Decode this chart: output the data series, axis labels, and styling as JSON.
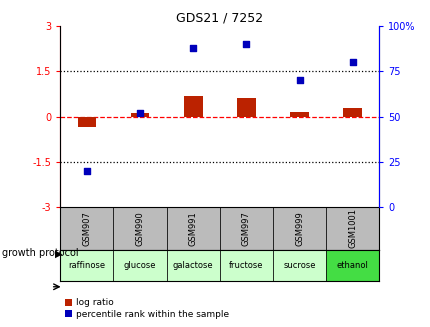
{
  "title": "GDS21 / 7252",
  "samples": [
    "GSM907",
    "GSM990",
    "GSM991",
    "GSM997",
    "GSM999",
    "GSM1001"
  ],
  "protocols": [
    "raffinose",
    "glucose",
    "galactose",
    "fructose",
    "sucrose",
    "ethanol"
  ],
  "log_ratio": [
    -0.35,
    0.12,
    0.7,
    0.62,
    0.14,
    0.28
  ],
  "percentile_rank": [
    20,
    52,
    88,
    90,
    70,
    80
  ],
  "left_ylim": [
    -3,
    3
  ],
  "right_ylim": [
    0,
    100
  ],
  "left_yticks": [
    -3,
    -1.5,
    0,
    1.5,
    3
  ],
  "right_yticks": [
    0,
    25,
    50,
    75,
    100
  ],
  "right_yticklabels": [
    "0",
    "25",
    "50",
    "75",
    "100%"
  ],
  "hline_dotted_vals": [
    -1.5,
    1.5
  ],
  "hline_dashed_val": 0.0,
  "bar_color": "#bb2200",
  "scatter_color": "#0000bb",
  "protocol_colors": [
    "#ccffcc",
    "#ccffcc",
    "#ccffcc",
    "#ccffcc",
    "#ccffcc",
    "#44dd44"
  ],
  "sample_bg_color": "#bbbbbb",
  "bar_width": 0.35,
  "legend_items": [
    "log ratio",
    "percentile rank within the sample"
  ],
  "legend_colors": [
    "#bb2200",
    "#0000bb"
  ],
  "title_fontsize": 9,
  "tick_fontsize": 7,
  "sample_fontsize": 6,
  "proto_fontsize": 6
}
